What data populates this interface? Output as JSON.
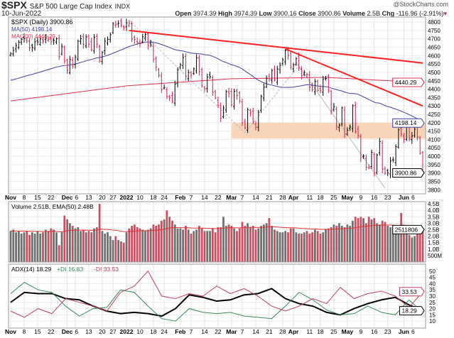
{
  "header": {
    "symbol": "$SPX",
    "name": "S&P 500 Large Cap Index",
    "exchange": "INDX",
    "date": "10-Jun-2022",
    "brand": "@StockCharts.com",
    "open_label": "Open",
    "open": "3974.39",
    "high_label": "High",
    "high": "3974.39",
    "low_label": "Low",
    "low": "3900.16",
    "close_label": "Close",
    "close": "3900.86",
    "volume_label": "Volume",
    "volume": "2.5B",
    "chg_label": "Chg",
    "chg": "-116.96 (-2.91%)"
  },
  "chart_data": [
    {
      "type": "ohlc",
      "panel": "price",
      "start_date": "2021-11-01",
      "holidays": [
        "2021-11-25",
        "2021-12-24",
        "2022-01-17",
        "2022-02-21",
        "2022-04-15",
        "2022-05-30"
      ],
      "legend": {
        "main": "$SPX (Daily) 3900.86",
        "ma50": "MA(50) 4198.14",
        "ma200": "MA(200) 4440.29"
      },
      "close": [
        4613,
        4631,
        4660,
        4680,
        4697,
        4701,
        4685,
        4646,
        4649,
        4682,
        4682,
        4700,
        4688,
        4704,
        4698,
        4682,
        4690,
        4701,
        4594,
        4655,
        4567,
        4513,
        4577,
        4538,
        4592,
        4686,
        4701,
        4667,
        4712,
        4668,
        4634,
        4709,
        4668,
        4568,
        4620,
        4686,
        4697,
        4725,
        4791,
        4786,
        4793,
        4778,
        4766,
        4796,
        4793,
        4700,
        4696,
        4677,
        4670,
        4713,
        4726,
        4659,
        4662,
        4577,
        4532,
        4482,
        4397,
        4410,
        4356,
        4350,
        4326,
        4431,
        4515,
        4546,
        4589,
        4477,
        4500,
        4484,
        4521,
        4587,
        4504,
        4419,
        4401,
        4471,
        4475,
        4380,
        4348,
        4304,
        4226,
        4288,
        4385,
        4374,
        4306,
        4387,
        4363,
        4329,
        4201,
        4170,
        4277,
        4259,
        4204,
        4173,
        4262,
        4357,
        4411,
        4463,
        4461,
        4511,
        4456,
        4520,
        4543,
        4575,
        4631,
        4602,
        4530,
        4545,
        4582,
        4525,
        4481,
        4500,
        4488,
        4412,
        4397,
        4446,
        4392,
        4391,
        4459,
        4463,
        4394,
        4272,
        4296,
        4175,
        4183,
        4288,
        4131,
        4155,
        4175,
        4300,
        4146,
        4123,
        3991,
        4001,
        3935,
        3930,
        4023,
        3901,
        4008,
        4088,
        3923,
        3900,
        3901,
        3973,
        3978,
        4057,
        4158,
        4132,
        4101,
        4176,
        4108,
        4121,
        4161,
        4115,
        4017,
        3900
      ],
      "ma200": [
        [
          "2021-11-01",
          4330
        ],
        [
          "2022-01-03",
          4420
        ],
        [
          "2022-03-01",
          4462
        ],
        [
          "2022-04-20",
          4470
        ],
        [
          "2022-06-10",
          4440
        ]
      ],
      "ylim": [
        3780,
        4830
      ],
      "yticks": [
        3800,
        3850,
        3900,
        3950,
        4000,
        4050,
        4100,
        4150,
        4200,
        4250,
        4300,
        4350,
        4400,
        4450,
        4500,
        4550,
        4600,
        4650,
        4700,
        4750,
        4800
      ],
      "last_labels": {
        "ma200": "4440.29",
        "ma50": "4198.14",
        "close": "3900.86"
      },
      "trendlines": [
        [
          [
            "2022-01-04",
            4750
          ],
          [
            "2022-06-10",
            4556
          ]
        ],
        [
          [
            "2022-03-29",
            4640
          ],
          [
            "2022-06-10",
            4300
          ]
        ]
      ],
      "zone": [
        4105,
        4200,
        "2022-03-01"
      ],
      "colors": {
        "up": "#000000",
        "down": "#d0204a",
        "ma50": "#4040a0",
        "ma200": "#e03050",
        "trend": "#ff2020",
        "zone": "#f8d4b8"
      }
    },
    {
      "type": "bar",
      "panel": "volume",
      "legend": "Volume 2.51B, EMA(50) 2.48B",
      "unit": "B",
      "values": [
        2.4,
        2.5,
        2.3,
        2.4,
        2.2,
        2.3,
        2.4,
        2.1,
        2.3,
        2.2,
        2.4,
        2.2,
        2.3,
        2.5,
        2.4,
        2.6,
        2.5,
        2.3,
        1.3,
        2.3,
        3.6,
        3.3,
        3.0,
        2.8,
        2.6,
        2.7,
        2.4,
        2.5,
        2.3,
        2.4,
        2.3,
        2.6,
        2.7,
        4.5,
        2.4,
        2.2,
        2.3,
        2.0,
        1.7,
        2.0,
        1.7,
        1.6,
        1.5,
        2.3,
        2.6,
        2.8,
        2.9,
        2.7,
        2.6,
        2.5,
        2.4,
        2.5,
        2.6,
        2.9,
        2.8,
        2.9,
        3.2,
        3.3,
        4.0,
        3.5,
        3.2,
        2.9,
        2.6,
        2.6,
        2.5,
        2.8,
        2.5,
        2.2,
        2.4,
        2.5,
        2.8,
        2.6,
        2.4,
        2.4,
        2.4,
        2.6,
        2.3,
        2.7,
        2.7,
        3.5,
        2.8,
        2.9,
        2.8,
        2.6,
        2.4,
        2.6,
        3.1,
        2.8,
        3.0,
        2.7,
        2.8,
        2.5,
        2.6,
        2.8,
        2.9,
        3.0,
        3.4,
        2.8,
        2.5,
        2.4,
        2.3,
        2.3,
        2.4,
        2.3,
        2.6,
        2.6,
        2.3,
        2.2,
        2.2,
        2.3,
        2.4,
        2.2,
        2.3,
        2.5,
        2.4,
        2.2,
        2.3,
        2.5,
        2.6,
        2.7,
        2.9,
        2.8,
        3.0,
        2.8,
        2.7,
        2.9,
        2.8,
        3.2,
        3.5,
        3.4,
        3.5,
        3.4,
        3.0,
        3.5,
        3.3,
        3.4,
        3.0,
        2.9,
        3.2,
        3.1,
        2.8,
        2.7,
        2.6,
        2.5,
        2.5,
        3.8,
        2.6,
        2.3,
        2.1,
        1.9,
        2.0,
        2.2,
        2.3,
        2.5
      ],
      "yticks": [
        "500M",
        "1.0B",
        "1.5B",
        "2.0B",
        "2.5B",
        "3.0B",
        "3.5B",
        "4.0B",
        "4.5B"
      ],
      "last_label": "2511806",
      "colors": {
        "up": "#707070",
        "down": "#c85060",
        "ema": "#e03030"
      }
    },
    {
      "type": "line",
      "panel": "adx",
      "legend": {
        "adx": "ADX(14) 18.29",
        "pdi": "+DI 16.83",
        "mdi": "-DI 33.53"
      },
      "resolution": "weekly",
      "series": [
        {
          "name": "ADX(14)",
          "color": "#000000",
          "values": [
            25,
            33,
            32,
            32,
            28,
            27,
            22,
            18,
            16,
            17,
            16,
            14,
            20,
            31,
            29,
            26,
            27,
            31,
            32,
            36,
            28,
            24,
            22,
            17,
            15,
            20,
            24,
            27,
            29,
            23,
            18.29
          ]
        },
        {
          "name": "+DI",
          "color": "#3a8a5a",
          "values": [
            32,
            41,
            35,
            33,
            22,
            14,
            20,
            21,
            35,
            33,
            22,
            12,
            10,
            20,
            17,
            16,
            17,
            14,
            13,
            12,
            22,
            33,
            27,
            19,
            15,
            16,
            22,
            17,
            15,
            27,
            16.83
          ]
        },
        {
          "name": "-DI",
          "color": "#c04060",
          "values": [
            18,
            13,
            20,
            16,
            28,
            25,
            22,
            18,
            33,
            38,
            50,
            30,
            28,
            32,
            30,
            38,
            32,
            36,
            30,
            22,
            18,
            22,
            28,
            24,
            37,
            28,
            32,
            34,
            30,
            21,
            33.53
          ]
        }
      ],
      "ylim": [
        5,
        55
      ],
      "yticks": [
        10,
        15,
        20,
        25,
        30,
        35,
        40,
        45,
        50
      ],
      "last_labels": {
        "mdi": "33.53",
        "adx": "18.29"
      }
    }
  ],
  "x_ticks": [
    [
      "2021-11-01",
      "Nov",
      1
    ],
    [
      "2021-11-08",
      "8"
    ],
    [
      "2021-11-15",
      "15"
    ],
    [
      "2021-11-22",
      "22"
    ],
    [
      "2021-12-01",
      "Dec",
      1
    ],
    [
      "2021-12-06",
      "6"
    ],
    [
      "2021-12-13",
      "13"
    ],
    [
      "2021-12-20",
      "20"
    ],
    [
      "2021-12-27",
      "27"
    ],
    [
      "2022-01-03",
      "2022",
      1
    ],
    [
      "2022-01-10",
      "10"
    ],
    [
      "2022-01-18",
      "18"
    ],
    [
      "2022-01-24",
      "24"
    ],
    [
      "2022-02-01",
      "Feb",
      1
    ],
    [
      "2022-02-07",
      "7"
    ],
    [
      "2022-02-14",
      "14"
    ],
    [
      "2022-02-22",
      "22"
    ],
    [
      "2022-03-01",
      "Mar",
      1
    ],
    [
      "2022-03-07",
      "7"
    ],
    [
      "2022-03-14",
      "14"
    ],
    [
      "2022-03-21",
      "21"
    ],
    [
      "2022-03-28",
      "28"
    ],
    [
      "2022-04-01",
      "Apr",
      1
    ],
    [
      "2022-04-11",
      "11"
    ],
    [
      "2022-04-18",
      "18"
    ],
    [
      "2022-04-25",
      "25"
    ],
    [
      "2022-05-02",
      "May",
      1
    ],
    [
      "2022-05-09",
      "9"
    ],
    [
      "2022-05-16",
      "16"
    ],
    [
      "2022-05-23",
      "23"
    ],
    [
      "2022-06-01",
      "Jun",
      1
    ],
    [
      "2022-06-06",
      "6"
    ]
  ]
}
